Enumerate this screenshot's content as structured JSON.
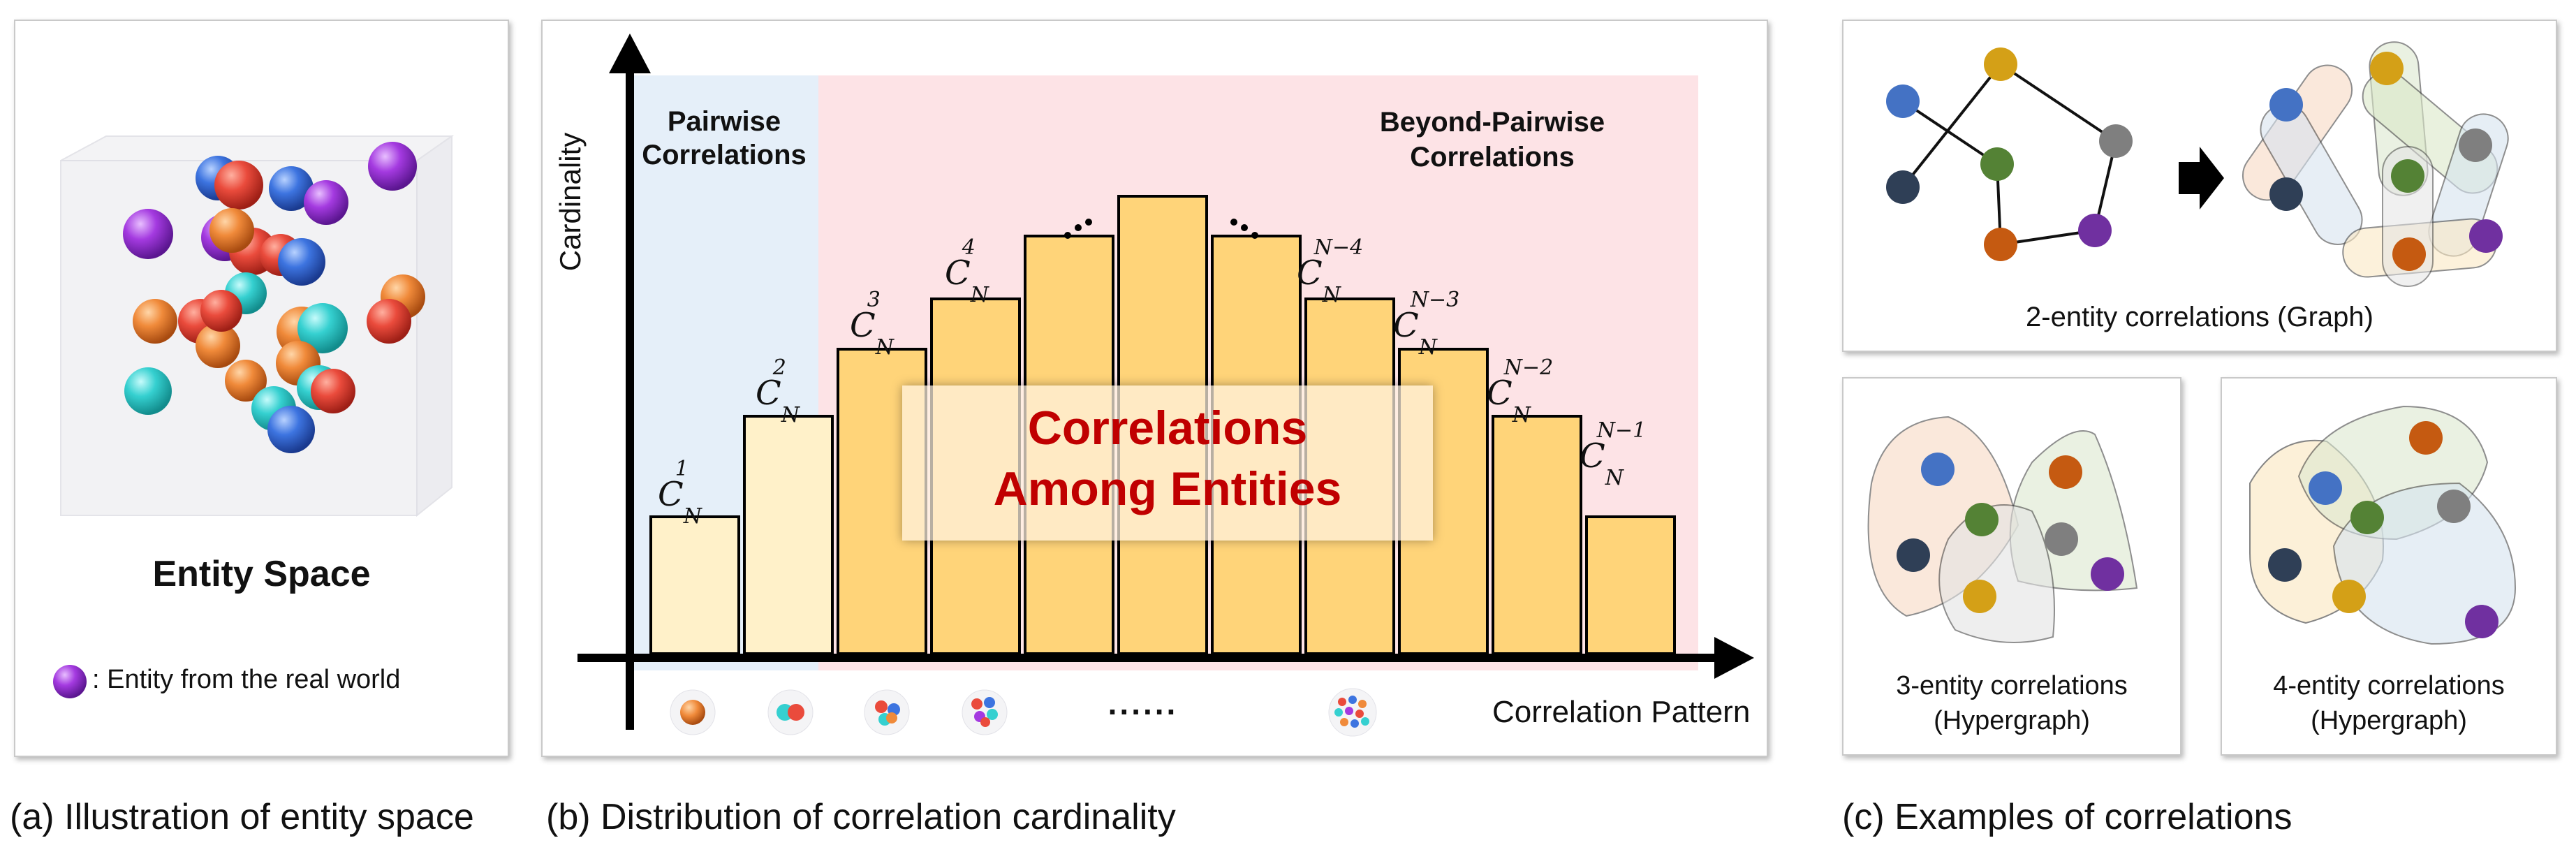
{
  "panel_a": {
    "title": "Entity Space",
    "legend_text": ": Entity from the real world",
    "caption": "(a) Illustration of entity space"
  },
  "panel_b": {
    "caption": "(b) Distribution of correlation cardinality",
    "y_axis_label": "Cardinality",
    "x_axis_label": "Correlation Pattern",
    "region_pairwise": "Pairwise\nCorrelations",
    "region_beyond": "Beyond-Pairwise\nCorrelations",
    "center_label": "Correlations\nAmong Entities",
    "dots_between": "......",
    "bar_labels": [
      {
        "base": "C",
        "sub": "N",
        "sup": "1"
      },
      {
        "base": "C",
        "sub": "N",
        "sup": "2"
      },
      {
        "base": "C",
        "sub": "N",
        "sup": "3"
      },
      {
        "base": "C",
        "sub": "N",
        "sup": "4"
      },
      {
        "base": "C",
        "sub": "N",
        "sup": "N−4"
      },
      {
        "base": "C",
        "sub": "N",
        "sup": "N−3"
      },
      {
        "base": "C",
        "sub": "N",
        "sup": "N−2"
      },
      {
        "base": "C",
        "sub": "N",
        "sup": "N−1"
      }
    ],
    "colors": {
      "pairwise_bg": "#e5eff9",
      "beyond_bg": "#fde3e6",
      "bar_light": "#fff1c9",
      "bar_dark": "#ffd479",
      "center_text": "#c00000"
    }
  },
  "panel_c": {
    "caption": "(c) Examples of correlations",
    "graph_label": "2-entity correlations (Graph)",
    "hyper3_label": "3-entity correlations\n(Hypergraph)",
    "hyper4_label": "4-entity correlations\n(Hypergraph)",
    "node_colors": {
      "blue": "#4472c4",
      "yellow": "#d4a017",
      "gray": "#7f7f7f",
      "navy": "#2f3f56",
      "green": "#548235",
      "orange": "#c55a11",
      "purple": "#7030a0"
    }
  }
}
